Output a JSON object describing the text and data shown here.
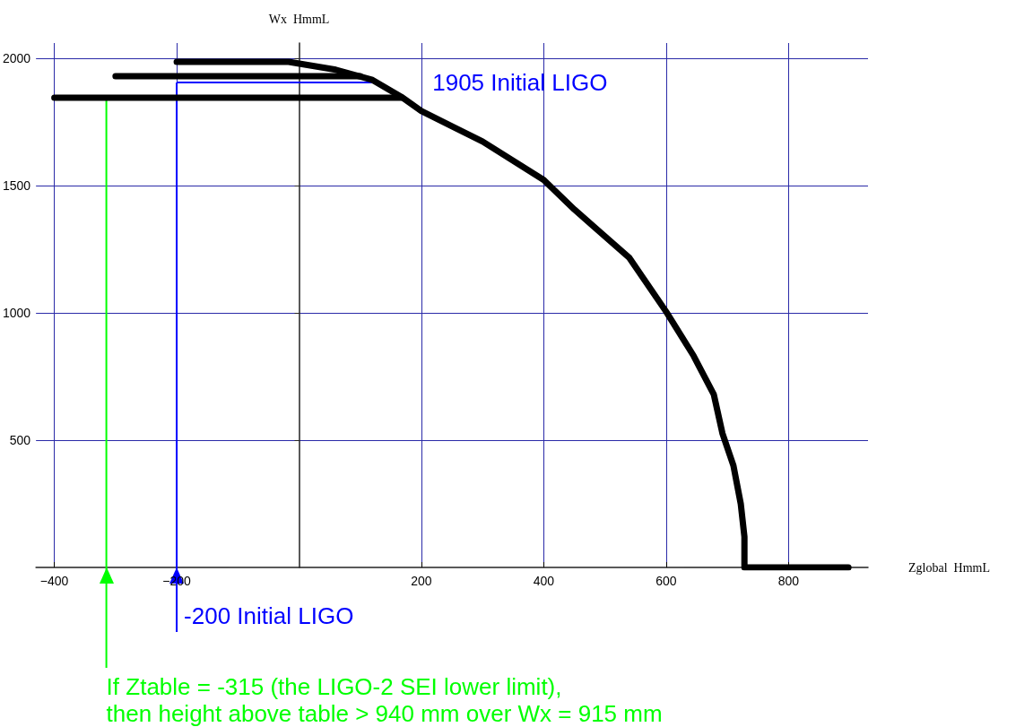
{
  "chart_data": {
    "type": "line",
    "xlabel": "Zglobal  HmmL",
    "ylabel": "Wx  HmmL",
    "xlim": [
      -430,
      930
    ],
    "ylim": [
      0,
      2060
    ],
    "xticks": [
      -400,
      -200,
      200,
      400,
      600,
      800
    ],
    "yticks": [
      500,
      1000,
      1500,
      2000
    ],
    "grid": true,
    "marker": "none",
    "line_style": "solid",
    "series": [
      {
        "color": "#000000",
        "x": [
          -400,
          167
        ],
        "values": [
          1845,
          1845
        ]
      },
      {
        "color": "#000000",
        "x": [
          -300,
          100
        ],
        "values": [
          1930,
          1930
        ]
      },
      {
        "color": "#000000",
        "x": [
          -200,
          -17,
          60,
          120,
          167,
          200,
          300,
          400,
          450,
          540,
          600,
          645,
          678,
          692,
          710,
          722,
          728,
          728,
          898
        ],
        "values": [
          1986,
          1986,
          1955,
          1915,
          1849,
          1793,
          1673,
          1522,
          1406,
          1216,
          1005,
          831,
          679,
          527,
          400,
          250,
          120,
          0,
          0
        ]
      }
    ],
    "ref_lines": [
      {
        "axis": "y",
        "value": 1905,
        "label": "1905 Initial LIGO",
        "color": "#0000ff"
      },
      {
        "axis": "x",
        "value": -200,
        "label": "-200 Initial LIGO",
        "color": "#0000ff"
      },
      {
        "axis": "x",
        "value": -315,
        "label": "If Ztable = -315 (the LIGO-2 SEI lower limit),\nthen height above table > 940 mm over Wx = 915 mm",
        "color": "#00ff00"
      }
    ]
  }
}
